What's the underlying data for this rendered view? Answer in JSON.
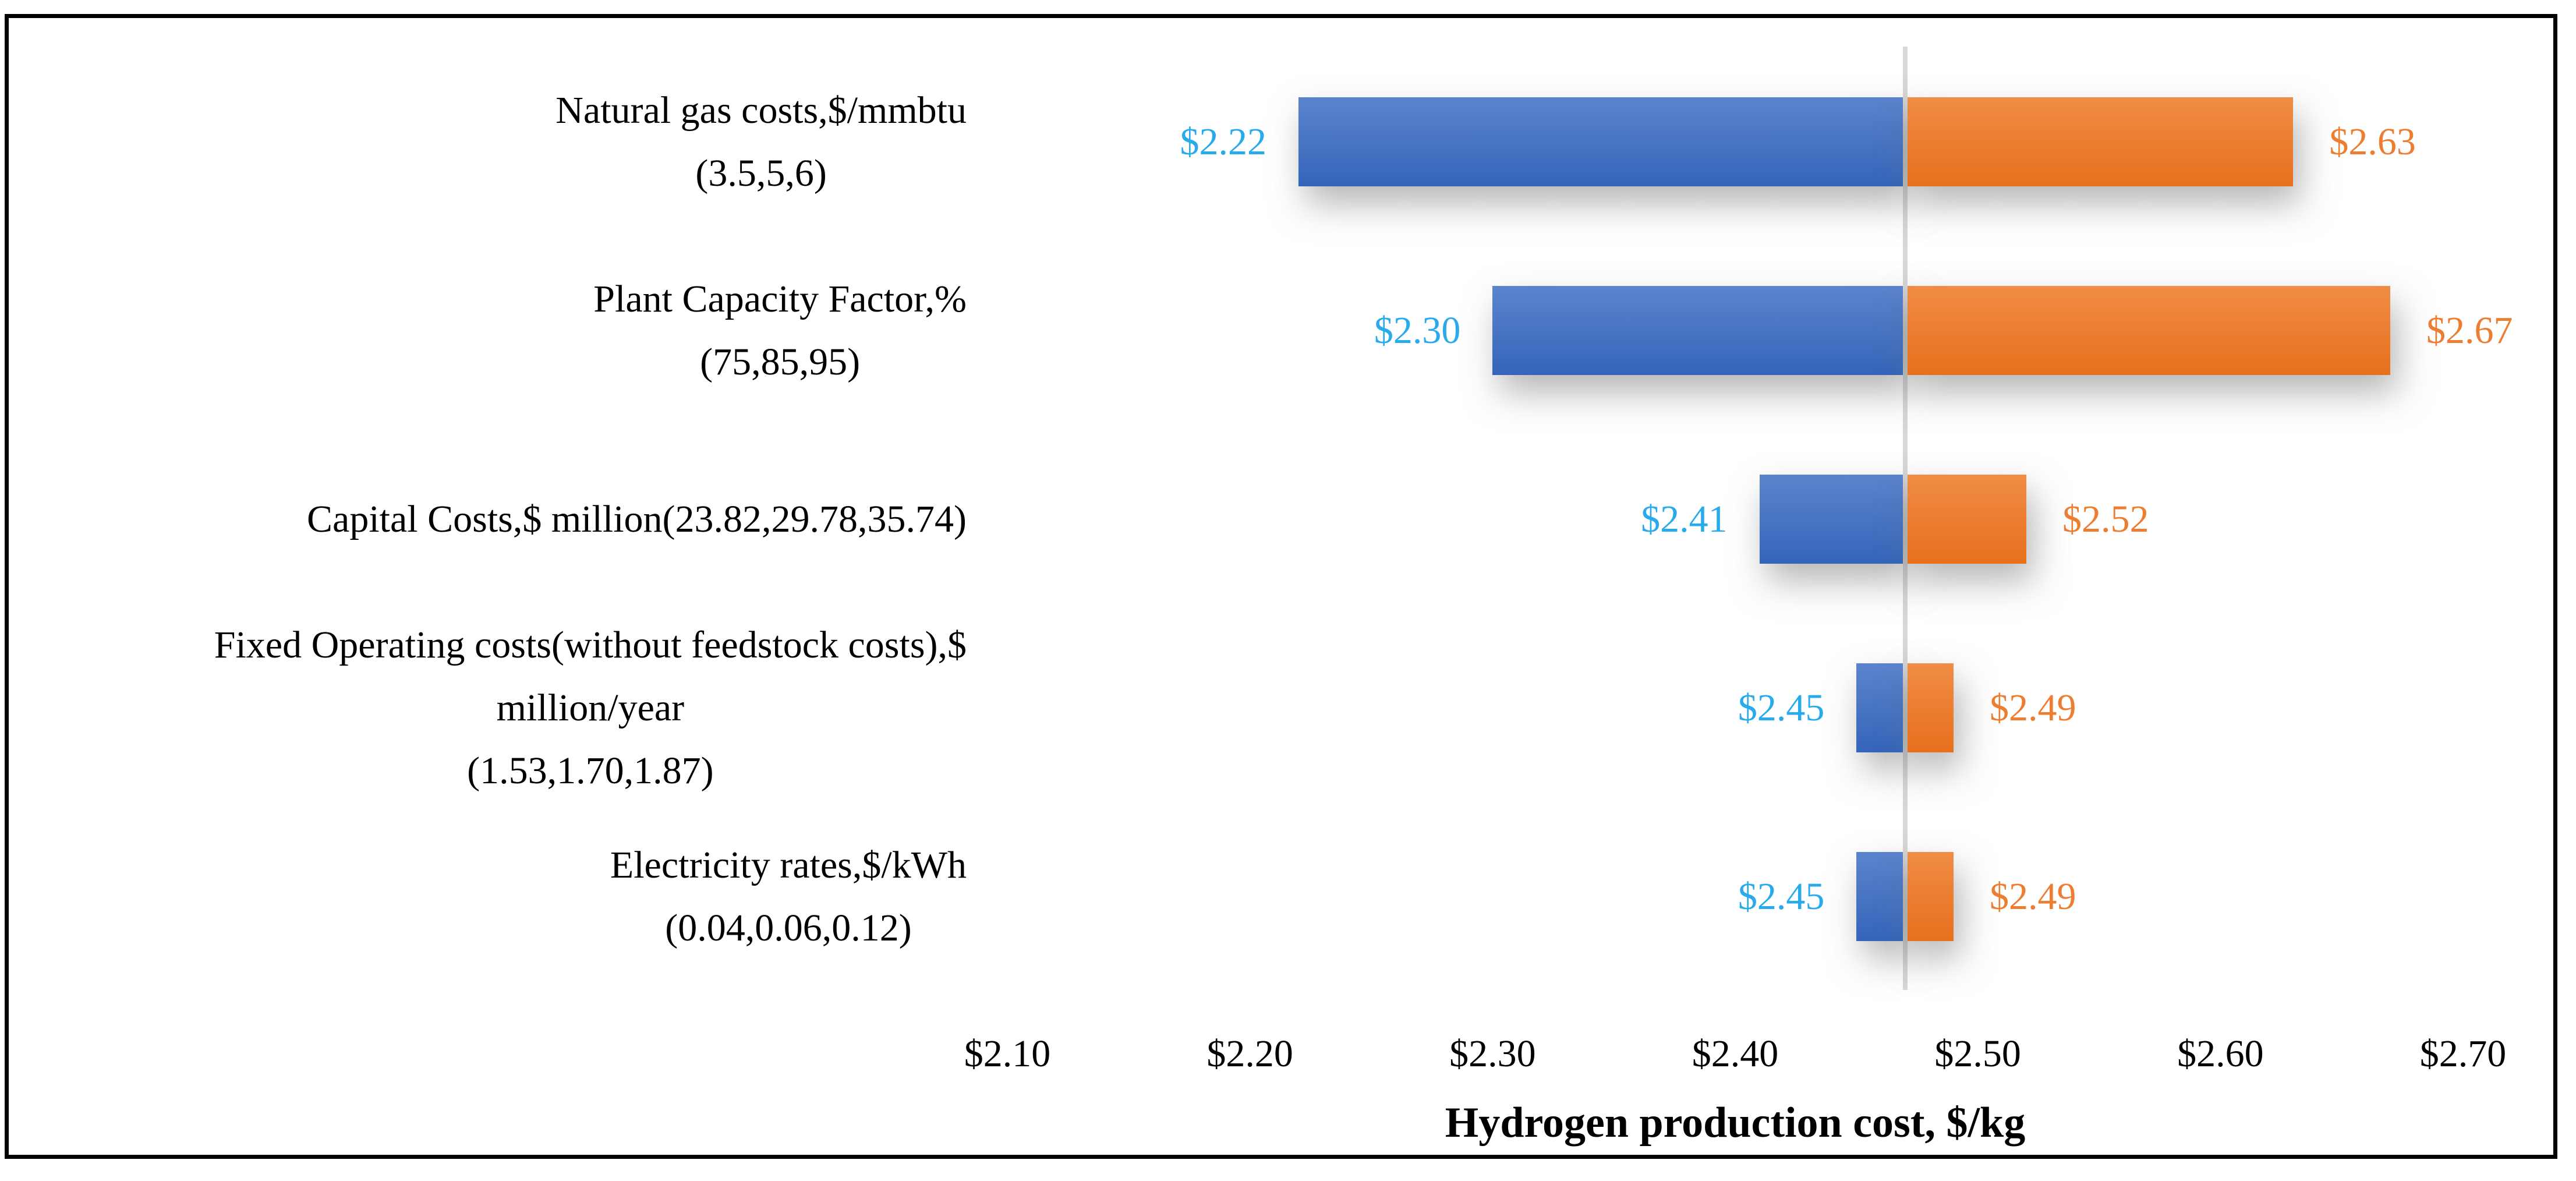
{
  "chart_data": {
    "type": "bar",
    "variant": "tornado-sensitivity",
    "orientation": "horizontal",
    "xlabel": "Hydrogen production cost, $/kg",
    "baseline_value": 2.47,
    "xlim": [
      2.1,
      2.7
    ],
    "tick_step": 0.1,
    "x_ticks": [
      {
        "value": 2.1,
        "label": "$2.10"
      },
      {
        "value": 2.2,
        "label": "$2.20"
      },
      {
        "value": 2.3,
        "label": "$2.30"
      },
      {
        "value": 2.4,
        "label": "$2.40"
      },
      {
        "value": 2.5,
        "label": "$2.50"
      },
      {
        "value": 2.6,
        "label": "$2.60"
      },
      {
        "value": 2.7,
        "label": "$2.70"
      }
    ],
    "grid": "baseline-only",
    "legend_position": "none",
    "rows": [
      {
        "label_lines": [
          "Natural gas costs,$/mmbtu",
          "(3.5,5,6)"
        ],
        "low": 2.22,
        "high": 2.63,
        "low_label": "$2.22",
        "high_label": "$2.63"
      },
      {
        "label_lines": [
          "Plant Capacity Factor,%",
          "(75,85,95)"
        ],
        "low": 2.3,
        "high": 2.67,
        "low_label": "$2.30",
        "high_label": "$2.67"
      },
      {
        "label_lines": [
          "Capital Costs,$ million(23.82,29.78,35.74)"
        ],
        "low": 2.41,
        "high": 2.52,
        "low_label": "$2.41",
        "high_label": "$2.52"
      },
      {
        "label_lines": [
          "Fixed Operating costs(without feedstock costs),$",
          "million/year",
          "(1.53,1.70,1.87)"
        ],
        "low": 2.45,
        "high": 2.49,
        "low_label": "$2.45",
        "high_label": "$2.49"
      },
      {
        "label_lines": [
          "Electricity rates,$/kWh",
          "(0.04,0.06,0.12)"
        ],
        "low": 2.45,
        "high": 2.49,
        "low_label": "$2.45",
        "high_label": "$2.49"
      }
    ],
    "colors": {
      "bar_low_top": "#5c84cd",
      "bar_low_bottom": "#3465ba",
      "bar_high_top": "#f08c45",
      "bar_high_bottom": "#e7701d",
      "low_value_label": "#28aaeb",
      "high_value_label": "#ed7d31",
      "baseline_line": "#d8d8d8",
      "border": "#000000",
      "text": "#000000",
      "background": "#ffffff"
    }
  }
}
